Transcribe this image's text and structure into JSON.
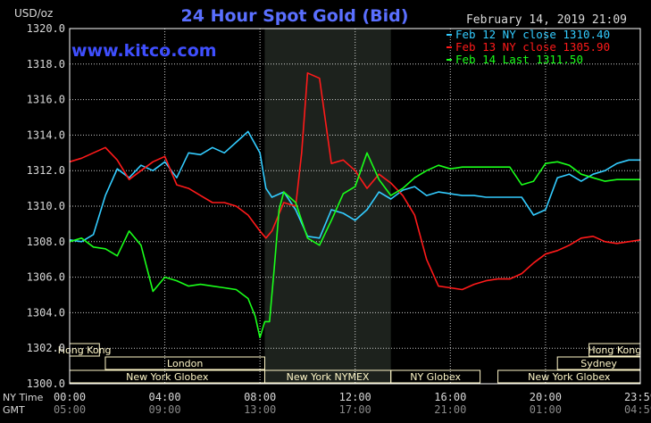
{
  "title": "24 Hour Spot Gold (Bid)",
  "watermark": "www.kitco.com",
  "timestamp": "February 14, 2019 21:09",
  "y_unit_label": "USD/oz",
  "row_labels": [
    "NY Time",
    "GMT"
  ],
  "colors": {
    "background": "#000000",
    "title": "#5a6fff",
    "watermark": "#3f4fff",
    "grid": "#ffffff",
    "session_fill": "#fff7c8",
    "highlight_band": "#1d221d",
    "text": "#d9d9d9"
  },
  "sessions_top": [
    {
      "label": "Hong Kong",
      "start": 0.0,
      "end": 1.25
    },
    {
      "label": "Hong Kong",
      "start": 21.83,
      "end": 24.0
    }
  ],
  "sessions_middle": [
    {
      "label": "London",
      "start": 1.5,
      "end": 8.2
    },
    {
      "label": "Sydney",
      "start": 20.5,
      "end": 24.0
    }
  ],
  "sessions_bottom": [
    {
      "label": "New York Globex",
      "start": 0.0,
      "end": 8.2
    },
    {
      "label": "New York NYMEX",
      "start": 8.2,
      "end": 13.5
    },
    {
      "label": "NY Globex",
      "start": 13.5,
      "end": 17.25
    },
    {
      "label": "New York Globex",
      "start": 18.0,
      "end": 24.0
    }
  ],
  "chart_data": {
    "type": "line",
    "title": "24 Hour Spot Gold (Bid)",
    "ylabel": "USD/oz",
    "ylim": [
      1300.0,
      1320.0
    ],
    "yticks": [
      "1300.0",
      "1302.0",
      "1304.0",
      "1306.0",
      "1308.0",
      "1310.0",
      "1312.0",
      "1314.0",
      "1316.0",
      "1318.0",
      "1320.0"
    ],
    "xlim": [
      0,
      23.9833
    ],
    "xticks": [
      {
        "ny": "00:00",
        "gmt": "05:00"
      },
      {
        "ny": "04:00",
        "gmt": "09:00"
      },
      {
        "ny": "08:00",
        "gmt": "13:00"
      },
      {
        "ny": "12:00",
        "gmt": "17:00"
      },
      {
        "ny": "16:00",
        "gmt": "21:00"
      },
      {
        "ny": "20:00",
        "gmt": "01:00"
      },
      {
        "ny": "23:59",
        "gmt": "04:59"
      }
    ],
    "grid": true,
    "legend_position": "top-right",
    "highlight_hours": [
      8.2,
      13.5
    ],
    "series": [
      {
        "name": "Feb 12 NY close 1310.40",
        "color": "#33ccff",
        "x": [
          0,
          0.5,
          1,
          1.5,
          2,
          2.5,
          3,
          3.5,
          4,
          4.5,
          5,
          5.5,
          6,
          6.5,
          7,
          7.5,
          8,
          8.25,
          8.5,
          9,
          9.5,
          10,
          10.5,
          11,
          11.5,
          12,
          12.5,
          13,
          13.5,
          14,
          14.5,
          15,
          15.5,
          16,
          16.5,
          17,
          17.5,
          18,
          18.5,
          19,
          19.5,
          20,
          20.5,
          21,
          21.5,
          22,
          22.5,
          23,
          23.5,
          23.98
        ],
        "y": [
          1308.1,
          1308.0,
          1308.4,
          1310.6,
          1312.1,
          1311.6,
          1312.3,
          1312.0,
          1312.5,
          1311.6,
          1313.0,
          1312.9,
          1313.3,
          1313.0,
          1313.6,
          1314.2,
          1313.0,
          1311.0,
          1310.5,
          1310.8,
          1309.8,
          1308.3,
          1308.2,
          1309.8,
          1309.6,
          1309.2,
          1309.8,
          1310.8,
          1310.4,
          1310.9,
          1311.1,
          1310.6,
          1310.8,
          1310.7,
          1310.6,
          1310.6,
          1310.5,
          1310.5,
          1310.5,
          1310.5,
          1309.5,
          1309.8,
          1311.6,
          1311.8,
          1311.4,
          1311.8,
          1312.0,
          1312.4,
          1312.6,
          1312.6
        ]
      },
      {
        "name": "Feb 13 NY close 1305.90",
        "color": "#ff1a1a",
        "x": [
          0,
          0.5,
          1,
          1.5,
          2,
          2.5,
          3,
          3.5,
          4,
          4.5,
          5,
          5.5,
          6,
          6.5,
          7,
          7.5,
          8,
          8.25,
          8.5,
          9,
          9.5,
          9.75,
          10,
          10.5,
          11,
          11.5,
          12,
          12.5,
          13,
          13.5,
          14,
          14.5,
          15,
          15.5,
          16,
          16.5,
          17,
          17.5,
          18,
          18.5,
          19,
          19.5,
          20,
          20.5,
          21,
          21.5,
          22,
          22.5,
          23,
          23.5,
          23.98
        ],
        "y": [
          1312.5,
          1312.7,
          1313.0,
          1313.3,
          1312.6,
          1311.5,
          1312.0,
          1312.5,
          1312.8,
          1311.2,
          1311.0,
          1310.6,
          1310.2,
          1310.2,
          1310.0,
          1309.5,
          1308.6,
          1308.2,
          1308.6,
          1310.2,
          1310.0,
          1313.0,
          1317.5,
          1317.2,
          1312.4,
          1312.6,
          1312.0,
          1311.0,
          1311.8,
          1311.3,
          1310.6,
          1309.5,
          1307.0,
          1305.5,
          1305.4,
          1305.3,
          1305.6,
          1305.8,
          1305.9,
          1305.9,
          1306.2,
          1306.8,
          1307.3,
          1307.5,
          1307.8,
          1308.2,
          1308.3,
          1308.0,
          1307.9,
          1308.0,
          1308.1
        ]
      },
      {
        "name": "Feb 14 Last 1311.50",
        "color": "#1aff1a",
        "x": [
          0,
          0.5,
          1,
          1.5,
          2,
          2.5,
          3,
          3.5,
          4,
          4.5,
          5,
          5.5,
          6,
          6.5,
          7,
          7.5,
          7.8,
          8,
          8.2,
          8.4,
          8.6,
          8.8,
          9,
          9.5,
          10,
          10.5,
          11,
          11.5,
          12,
          12.5,
          13,
          13.5,
          14,
          14.5,
          15,
          15.5,
          16,
          16.5,
          17,
          17.5,
          18,
          18.5,
          19,
          19.5,
          20,
          20.5,
          21,
          21.5,
          22,
          22.5,
          23,
          23.5,
          23.98
        ],
        "y": [
          1308.0,
          1308.2,
          1307.7,
          1307.6,
          1307.2,
          1308.6,
          1307.8,
          1305.2,
          1306.0,
          1305.8,
          1305.5,
          1305.6,
          1305.5,
          1305.4,
          1305.3,
          1304.8,
          1303.8,
          1302.6,
          1303.5,
          1303.5,
          1306.5,
          1309.8,
          1310.8,
          1310.2,
          1308.2,
          1307.8,
          1309.2,
          1310.7,
          1311.1,
          1313.0,
          1311.5,
          1310.6,
          1311.0,
          1311.6,
          1312.0,
          1312.3,
          1312.1,
          1312.2,
          1312.2,
          1312.2,
          1312.2,
          1312.2,
          1311.2,
          1311.4,
          1312.4,
          1312.5,
          1312.3,
          1311.8,
          1311.6,
          1311.4,
          1311.5,
          1311.5,
          1311.5
        ]
      }
    ]
  }
}
